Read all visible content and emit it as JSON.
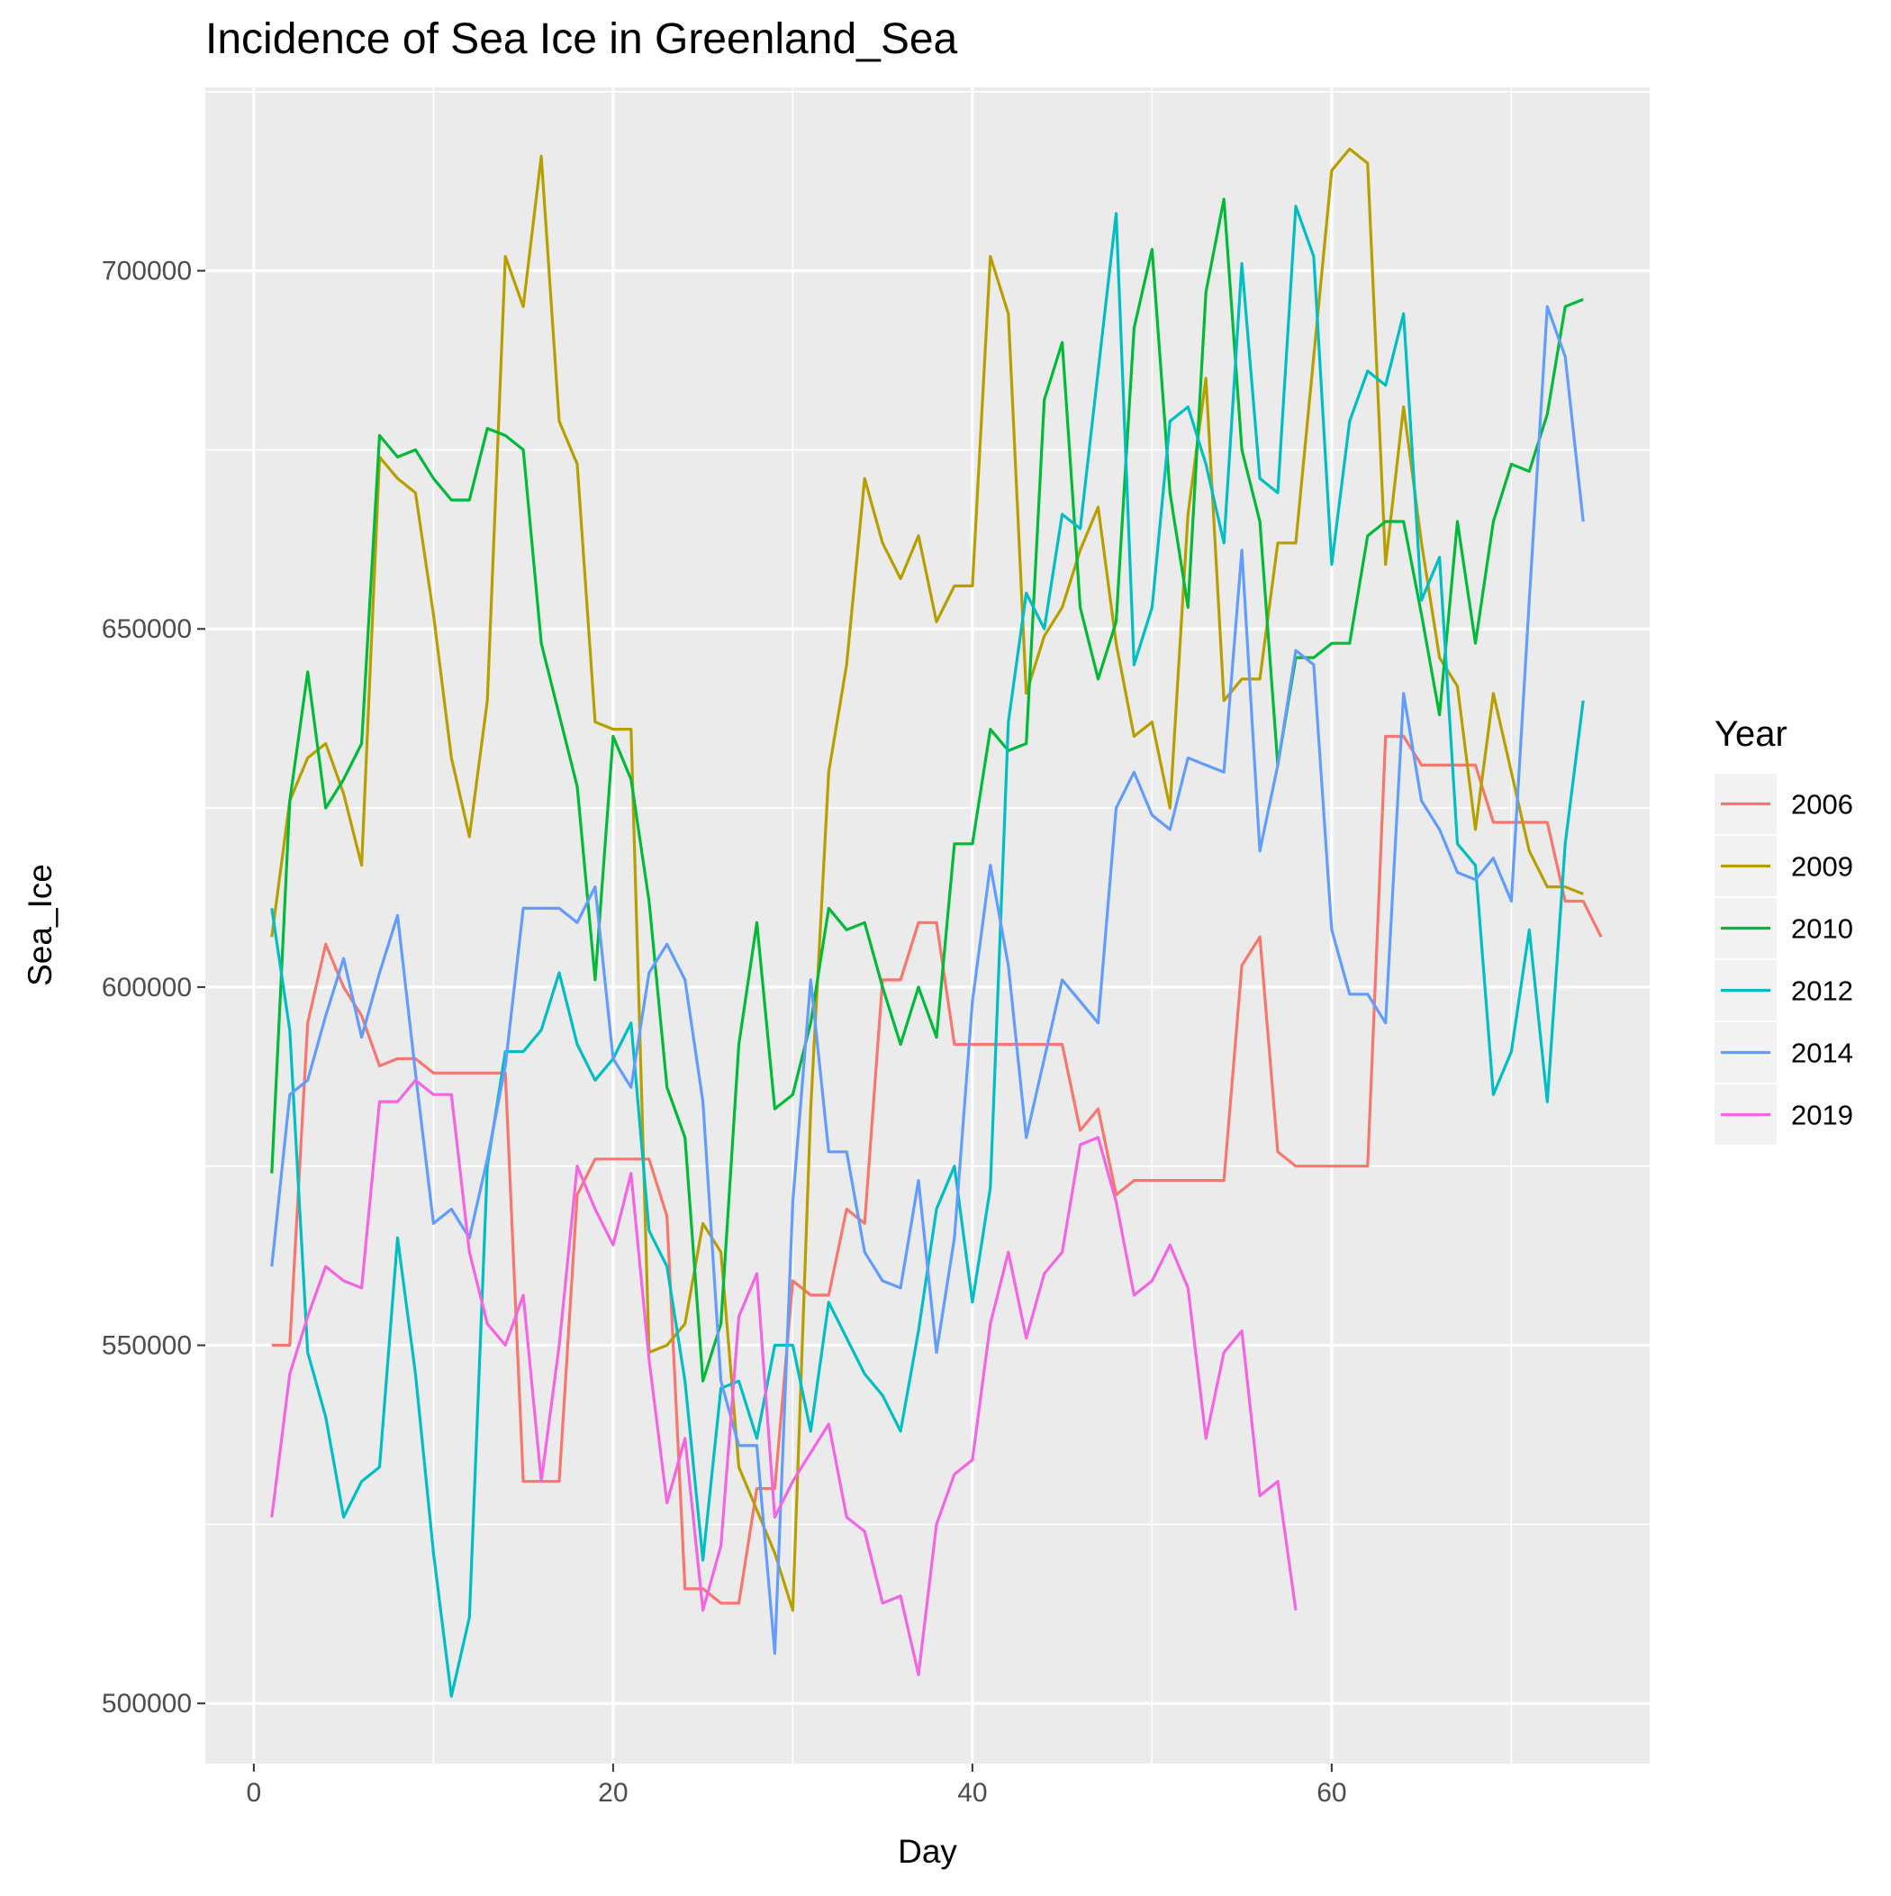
{
  "chart_data": {
    "type": "line",
    "title": "Incidence of Sea Ice in Greenland_Sea",
    "xlabel": "Day",
    "ylabel": "Sea_Ice",
    "xlim": [
      -2.7,
      77.7
    ],
    "ylim": [
      491600,
      725600
    ],
    "x_ticks": [
      0,
      20,
      40,
      60
    ],
    "x_tick_labels": [
      "0",
      "20",
      "40",
      "60"
    ],
    "y_ticks": [
      500000,
      550000,
      600000,
      650000,
      700000
    ],
    "y_tick_labels": [
      "500000",
      "550000",
      "600000",
      "650000",
      "700000"
    ],
    "grid": true,
    "legend": {
      "title": "Year",
      "position": "right"
    },
    "series": [
      {
        "name": "2006",
        "color": "#F8766D",
        "values": [
          550000,
          550000,
          595000,
          606000,
          600000,
          596000,
          589000,
          590000,
          590000,
          588000,
          588000,
          588000,
          588000,
          588000,
          531000,
          531000,
          531000,
          571000,
          576000,
          576000,
          576000,
          576000,
          568000,
          516000,
          516000,
          514000,
          514000,
          530000,
          530000,
          559000,
          557000,
          557000,
          569000,
          567000,
          601000,
          601000,
          609000,
          609000,
          592000,
          592000,
          592000,
          592000,
          592000,
          592000,
          592000,
          580000,
          583000,
          571000,
          573000,
          573000,
          573000,
          573000,
          573000,
          573000,
          603000,
          607000,
          577000,
          575000,
          575000,
          575000,
          575000,
          575000,
          635000,
          635000,
          631000,
          631000,
          631000,
          631000,
          623000,
          623000,
          623000,
          623000,
          612000,
          612000,
          607000
        ]
      },
      {
        "name": "2009",
        "color": "#B79F00",
        "values": [
          607000,
          626000,
          632000,
          634000,
          627000,
          617000,
          674000,
          671000,
          669000,
          652000,
          632000,
          621000,
          640000,
          702000,
          695000,
          716000,
          679000,
          673000,
          637000,
          636000,
          636000,
          549000,
          550000,
          553000,
          567000,
          563000,
          533000,
          527000,
          521000,
          513000,
          583000,
          630000,
          645000,
          671000,
          662000,
          657000,
          663000,
          651000,
          656000,
          656000,
          702000,
          694000,
          641000,
          649000,
          653000,
          661000,
          667000,
          648000,
          635000,
          637000,
          625000,
          666000,
          685000,
          640000,
          643000,
          643000,
          662000,
          662000,
          688000,
          714000,
          717000,
          715000,
          659000,
          681000,
          662000,
          646000,
          642000,
          622000,
          641000,
          630000,
          619000,
          614000,
          614000,
          613000
        ]
      },
      {
        "name": "2010",
        "color": "#00BA38",
        "values": [
          574000,
          626000,
          644000,
          625000,
          629000,
          634000,
          677000,
          674000,
          675000,
          671000,
          668000,
          668000,
          678000,
          677000,
          675000,
          648000,
          638000,
          628000,
          601000,
          635000,
          629000,
          612000,
          586000,
          579000,
          545000,
          553000,
          592000,
          609000,
          583000,
          585000,
          595000,
          611000,
          608000,
          609000,
          600000,
          592000,
          600000,
          593000,
          620000,
          620000,
          636000,
          633000,
          634000,
          682000,
          690000,
          653000,
          643000,
          651000,
          692000,
          703000,
          669000,
          653000,
          697000,
          710000,
          675000,
          665000,
          631000,
          646000,
          646000,
          648000,
          648000,
          663000,
          665000,
          665000,
          652000,
          638000,
          665000,
          648000,
          665000,
          673000,
          672000,
          680000,
          695000,
          696000
        ]
      },
      {
        "name": "2012",
        "color": "#00BFC4",
        "values": [
          611000,
          594000,
          549000,
          540000,
          526000,
          531000,
          533000,
          565000,
          546000,
          521000,
          501000,
          512000,
          575000,
          591000,
          591000,
          594000,
          602000,
          592000,
          587000,
          590000,
          595000,
          566000,
          561000,
          545000,
          520000,
          544000,
          545000,
          537000,
          550000,
          550000,
          538000,
          556000,
          551000,
          546000,
          543000,
          538000,
          552000,
          569000,
          575000,
          556000,
          572000,
          637000,
          655000,
          650000,
          666000,
          664000,
          686000,
          708000,
          645000,
          653000,
          679000,
          681000,
          673000,
          662000,
          701000,
          671000,
          669000,
          709000,
          702000,
          659000,
          679000,
          686000,
          684000,
          694000,
          654000,
          660000,
          620000,
          617000,
          585000,
          591000,
          608000,
          584000,
          620000,
          640000
        ]
      },
      {
        "name": "2014",
        "color": "#619CFF",
        "values": [
          561000,
          585000,
          587000,
          596000,
          604000,
          593000,
          602000,
          610000,
          588000,
          567000,
          569000,
          565000,
          576000,
          589000,
          611000,
          611000,
          611000,
          609000,
          614000,
          590000,
          586000,
          602000,
          606000,
          601000,
          584000,
          545000,
          536000,
          536000,
          507000,
          570000,
          601000,
          577000,
          577000,
          563000,
          559000,
          558000,
          573000,
          549000,
          565000,
          598000,
          617000,
          603000,
          579000,
          590000,
          601000,
          598000,
          595000,
          625000,
          630000,
          624000,
          622000,
          632000,
          631000,
          630000,
          661000,
          619000,
          631000,
          647000,
          645000,
          608000,
          599000,
          599000,
          595000,
          641000,
          626000,
          622000,
          616000,
          615000,
          618000,
          612000,
          654000,
          695000,
          688000,
          665000
        ]
      },
      {
        "name": "2019",
        "color": "#F564E3",
        "values": [
          526000,
          546000,
          554000,
          561000,
          559000,
          558000,
          584000,
          584000,
          587000,
          585000,
          585000,
          563000,
          553000,
          550000,
          557000,
          531000,
          550000,
          575000,
          569000,
          564000,
          574000,
          548000,
          528000,
          537000,
          513000,
          522000,
          554000,
          560000,
          526000,
          531000,
          535000,
          539000,
          526000,
          524000,
          514000,
          515000,
          504000,
          525000,
          532000,
          534000,
          553000,
          563000,
          551000,
          560000,
          563000,
          578000,
          579000,
          570000,
          557000,
          559000,
          564000,
          558000,
          537000,
          549000,
          552000,
          529000,
          531000,
          513000
        ]
      }
    ]
  }
}
